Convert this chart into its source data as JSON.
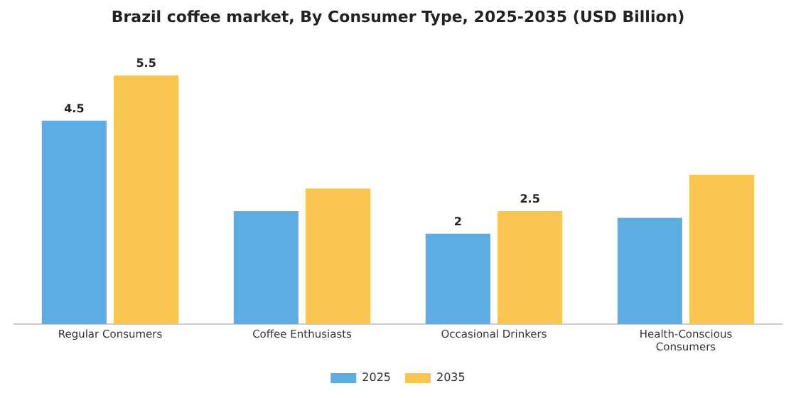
{
  "chart_data": {
    "type": "bar",
    "title": "Brazil coffee market, By Consumer Type, 2025-2035 (USD Billion)",
    "categories": [
      "Regular Consumers",
      "Coffee Enthusiasts",
      "Occasional Drinkers",
      "Health-Conscious Consumers"
    ],
    "series": [
      {
        "name": "2025",
        "color": "#5dade2",
        "values": [
          4.5,
          2.5,
          2,
          2.35
        ],
        "value_labels": [
          "4.5",
          null,
          "2",
          null
        ]
      },
      {
        "name": "2035",
        "color": "#f9c74f",
        "values": [
          5.5,
          3.0,
          2.5,
          3.3
        ],
        "value_labels": [
          "5.5",
          null,
          "2.5",
          null
        ]
      }
    ],
    "legend": "bottom",
    "grid": false
  }
}
